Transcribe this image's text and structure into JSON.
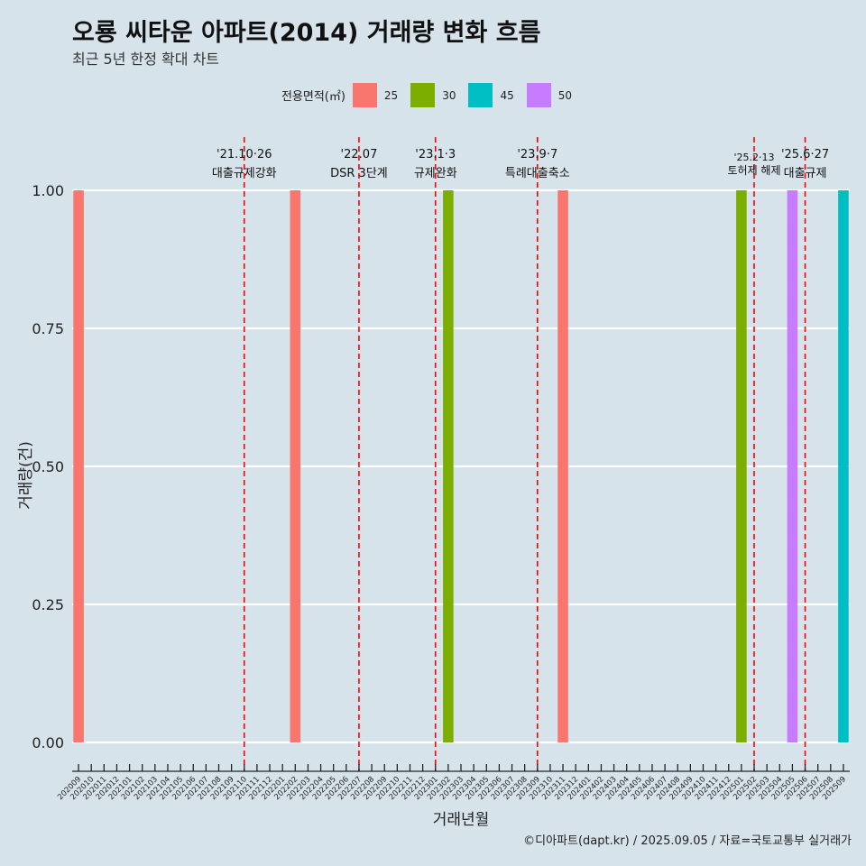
{
  "chart_data": {
    "type": "bar",
    "title": "오룡 씨타운 아파트(2014) 거래량 변화 흐름",
    "subtitle": "최근 5년 한정 확대 차트",
    "xlabel": "거래년월",
    "ylabel": "거래량(건)",
    "caption": "©디아파트(dapt.kr) / 2025.09.05 / 자료=국토교통부 실거래가",
    "legend": {
      "title": "전용면적(㎡)",
      "position": "top",
      "items": [
        {
          "label": "25",
          "color": "#F8766D"
        },
        {
          "label": "30",
          "color": "#7CAE00"
        },
        {
          "label": "45",
          "color": "#00BFC4"
        },
        {
          "label": "50",
          "color": "#C77CFF"
        }
      ]
    },
    "ylim": [
      0,
      1
    ],
    "yticks": [
      "0.00",
      "0.25",
      "0.50",
      "0.75",
      "1.00"
    ],
    "grid": true,
    "categories": [
      "202009",
      "202010",
      "202011",
      "202012",
      "202101",
      "202102",
      "202103",
      "202104",
      "202105",
      "202106",
      "202107",
      "202108",
      "202109",
      "202110",
      "202111",
      "202112",
      "202201",
      "202202",
      "202203",
      "202204",
      "202205",
      "202206",
      "202207",
      "202208",
      "202209",
      "202210",
      "202211",
      "202212",
      "202301",
      "202302",
      "202303",
      "202304",
      "202305",
      "202306",
      "202307",
      "202308",
      "202309",
      "202310",
      "202311",
      "202312",
      "202401",
      "202402",
      "202403",
      "202404",
      "202405",
      "202406",
      "202407",
      "202408",
      "202409",
      "202410",
      "202411",
      "202412",
      "202501",
      "202502",
      "202503",
      "202504",
      "202505",
      "202506",
      "202507",
      "202508",
      "202509"
    ],
    "series": [
      {
        "name": "25",
        "color": "#F8766D",
        "points": [
          {
            "x": "202009",
            "y": 1
          },
          {
            "x": "202202",
            "y": 1
          },
          {
            "x": "202311",
            "y": 1
          }
        ]
      },
      {
        "name": "30",
        "color": "#7CAE00",
        "points": [
          {
            "x": "202302",
            "y": 1
          },
          {
            "x": "202501",
            "y": 1
          }
        ]
      },
      {
        "name": "45",
        "color": "#00BFC4",
        "points": [
          {
            "x": "202509",
            "y": 1
          }
        ]
      },
      {
        "name": "50",
        "color": "#C77CFF",
        "points": [
          {
            "x": "202505",
            "y": 1
          }
        ]
      }
    ],
    "annotations": [
      {
        "x": "202110",
        "date": "'21.10·26",
        "label": "대출규제강화"
      },
      {
        "x": "202207",
        "date": "'22.07",
        "label": "DSR 3단계"
      },
      {
        "x": "202301",
        "date": "'23.1·3",
        "label": "규제완화"
      },
      {
        "x": "202309",
        "date": "'23.9·7",
        "label": "특례대출축소"
      },
      {
        "x": "202502",
        "date": "'25.2·13",
        "label": "토허제 해제"
      },
      {
        "x": "202506",
        "date": "'25.6·27",
        "label": "대출규제"
      }
    ]
  }
}
